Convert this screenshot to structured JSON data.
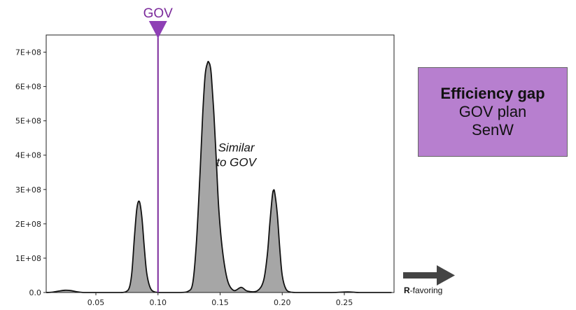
{
  "chart_data": {
    "type": "area",
    "x": [
      0.01,
      0.015,
      0.02,
      0.025,
      0.03,
      0.035,
      0.04,
      0.045,
      0.05,
      0.055,
      0.06,
      0.065,
      0.07,
      0.074,
      0.077,
      0.079,
      0.081,
      0.083,
      0.085,
      0.087,
      0.089,
      0.091,
      0.094,
      0.098,
      0.103,
      0.11,
      0.118,
      0.124,
      0.128,
      0.131,
      0.134,
      0.136,
      0.138,
      0.14,
      0.141,
      0.142,
      0.143,
      0.145,
      0.147,
      0.149,
      0.152,
      0.156,
      0.161,
      0.167,
      0.172,
      0.18,
      0.185,
      0.188,
      0.19,
      0.192,
      0.193,
      0.194,
      0.196,
      0.198,
      0.2,
      0.203,
      0.207,
      0.212,
      0.22,
      0.24,
      0.25,
      0.255,
      0.262,
      0.28,
      0.288
    ],
    "y": [
      0,
      1000000.0,
      4000000.0,
      6500000.0,
      5500000.0,
      2000000.0,
      0,
      0,
      0,
      0,
      0,
      0,
      0,
      2000000.0,
      15000000.0,
      60000000.0,
      160000000.0,
      245000000.0,
      265000000.0,
      220000000.0,
      130000000.0,
      55000000.0,
      12000000.0,
      1000000.0,
      0,
      0,
      0,
      3000000.0,
      28000000.0,
      150000000.0,
      360000000.0,
      520000000.0,
      635000000.0,
      670000000.0,
      670000000.0,
      660000000.0,
      630000000.0,
      520000000.0,
      380000000.0,
      240000000.0,
      120000000.0,
      35000000.0,
      6000000.0,
      15000000.0,
      4000000.0,
      5000000.0,
      35000000.0,
      110000000.0,
      200000000.0,
      280000000.0,
      298000000.0,
      290000000.0,
      230000000.0,
      130000000.0,
      50000000.0,
      10000000.0,
      1000000.0,
      0,
      0,
      0,
      1500000.0,
      1500000.0,
      0,
      0,
      0
    ],
    "xlim": [
      0.01,
      0.29
    ],
    "ylim": [
      0,
      750000000.0
    ],
    "xticks": [
      0.05,
      0.1,
      0.15,
      0.2,
      0.25
    ],
    "xtick_labels": [
      "0.05",
      "0.10",
      "0.15",
      "0.20",
      "0.25"
    ],
    "yticks": [
      0,
      100000000.0,
      200000000.0,
      300000000.0,
      400000000.0,
      500000000.0,
      600000000.0,
      700000000.0
    ],
    "ytick_labels": [
      "0.0",
      "1E+08",
      "2E+08",
      "3E+08",
      "4E+08",
      "5E+08",
      "6E+08",
      "7E+08"
    ],
    "grid": false,
    "marker": {
      "label": "GOV",
      "x": 0.1
    },
    "annotation": {
      "line1": "Similar",
      "line2": "to GOV",
      "x": 0.163,
      "y": 390000000.0
    }
  },
  "colors": {
    "fill": "#a6a6a6",
    "curve": "#111111",
    "marker": "#7b2a9b",
    "marker_triangle": "#8e3fb5",
    "box": "#b77fcf",
    "arrow": "#444444"
  },
  "info_box": {
    "title": "Efficiency gap",
    "line1": "GOV plan",
    "line2": "SenW"
  },
  "direction": {
    "bold": "R",
    "rest": "-favoring",
    "icon": "right-arrow-icon"
  }
}
